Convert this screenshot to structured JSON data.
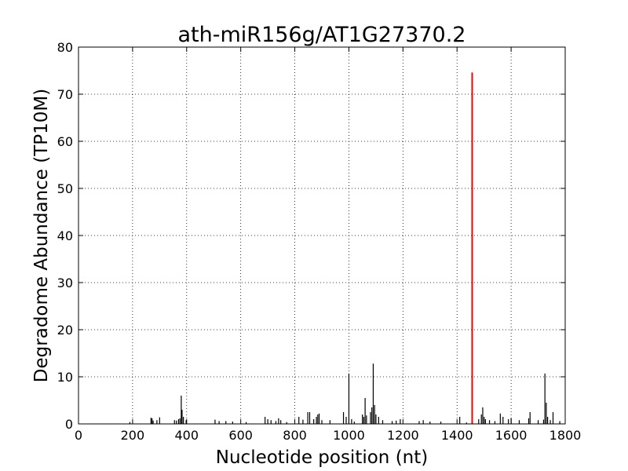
{
  "chart_data": {
    "type": "bar",
    "title": "ath-miR156g/AT1G27370.2",
    "xlabel": "Nucleotide position (nt)",
    "ylabel": "Degradome Abundance (TP10M)",
    "xlim": [
      0,
      1800
    ],
    "ylim": [
      0,
      80
    ],
    "xticks": [
      0,
      200,
      400,
      600,
      800,
      1000,
      1200,
      1400,
      1600,
      1800
    ],
    "yticks": [
      0,
      10,
      20,
      30,
      40,
      50,
      60,
      70,
      80
    ],
    "xtick_labels": [
      "0",
      "200",
      "400",
      "600",
      "800",
      "1000",
      "1200",
      "1400",
      "1600",
      "1800"
    ],
    "ytick_labels": [
      "0",
      "10",
      "20",
      "30",
      "40",
      "50",
      "60",
      "70",
      "80"
    ],
    "grid": true,
    "colors": {
      "background": "#000000",
      "highlight": "#ff0000",
      "grid": "#000000"
    },
    "series": [
      {
        "color": "#000000",
        "x": [
          190,
          268,
          272,
          276,
          290,
          300,
          355,
          362,
          370,
          375,
          380,
          383,
          388,
          398,
          505,
          520,
          545,
          570,
          620,
          690,
          700,
          712,
          730,
          740,
          748,
          770,
          815,
          830,
          848,
          855,
          870,
          880,
          885,
          890,
          900,
          930,
          980,
          990,
          1000,
          1010,
          1020,
          1050,
          1055,
          1060,
          1065,
          1080,
          1085,
          1090,
          1095,
          1100,
          1110,
          1125,
          1160,
          1175,
          1190,
          1260,
          1275,
          1300,
          1340,
          1410,
          1435,
          1480,
          1490,
          1495,
          1500,
          1505,
          1520,
          1540,
          1560,
          1570,
          1590,
          1600,
          1630,
          1665,
          1670,
          1700,
          1720,
          1725,
          1730,
          1735,
          1745,
          1755,
          1780
        ],
        "values": [
          0.4,
          1.3,
          1.2,
          0.7,
          0.8,
          1.4,
          0.8,
          0.7,
          1.0,
          1.2,
          6.0,
          3.0,
          1.5,
          0.8,
          0.9,
          0.6,
          0.6,
          0.5,
          0.4,
          1.5,
          1.0,
          0.8,
          0.6,
          1.2,
          0.8,
          0.4,
          1.5,
          0.9,
          2.5,
          2.5,
          1.0,
          1.5,
          2.0,
          2.2,
          0.8,
          0.8,
          2.5,
          1.5,
          10.7,
          1.0,
          0.5,
          2.0,
          1.5,
          5.5,
          1.8,
          2.5,
          3.5,
          12.8,
          4.0,
          2.0,
          1.5,
          0.8,
          0.6,
          0.7,
          1.0,
          0.6,
          0.8,
          0.5,
          0.5,
          1.5,
          0.3,
          1.0,
          2.0,
          3.5,
          1.5,
          1.0,
          0.8,
          0.6,
          2.2,
          1.5,
          1.0,
          1.2,
          0.8,
          1.2,
          2.5,
          0.8,
          0.9,
          10.7,
          4.5,
          1.5,
          0.8,
          2.5,
          0.6
        ]
      },
      {
        "color": "#ff0000",
        "x": [
          1456
        ],
        "values": [
          74.6
        ]
      }
    ]
  }
}
